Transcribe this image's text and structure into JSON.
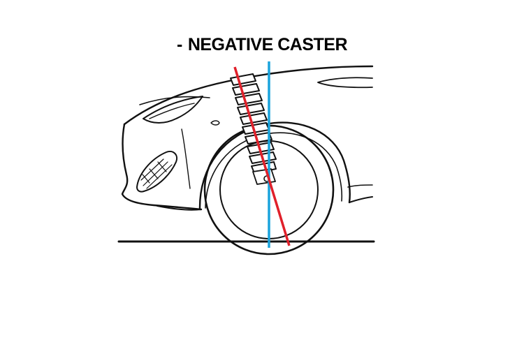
{
  "title_prefix": "-",
  "title": "NEGATIVE CASTER",
  "colors": {
    "background": "#ffffff",
    "outline": "#111111",
    "vertical_reference": "#1aa3dc",
    "steering_axis": "#e0202a"
  }
}
